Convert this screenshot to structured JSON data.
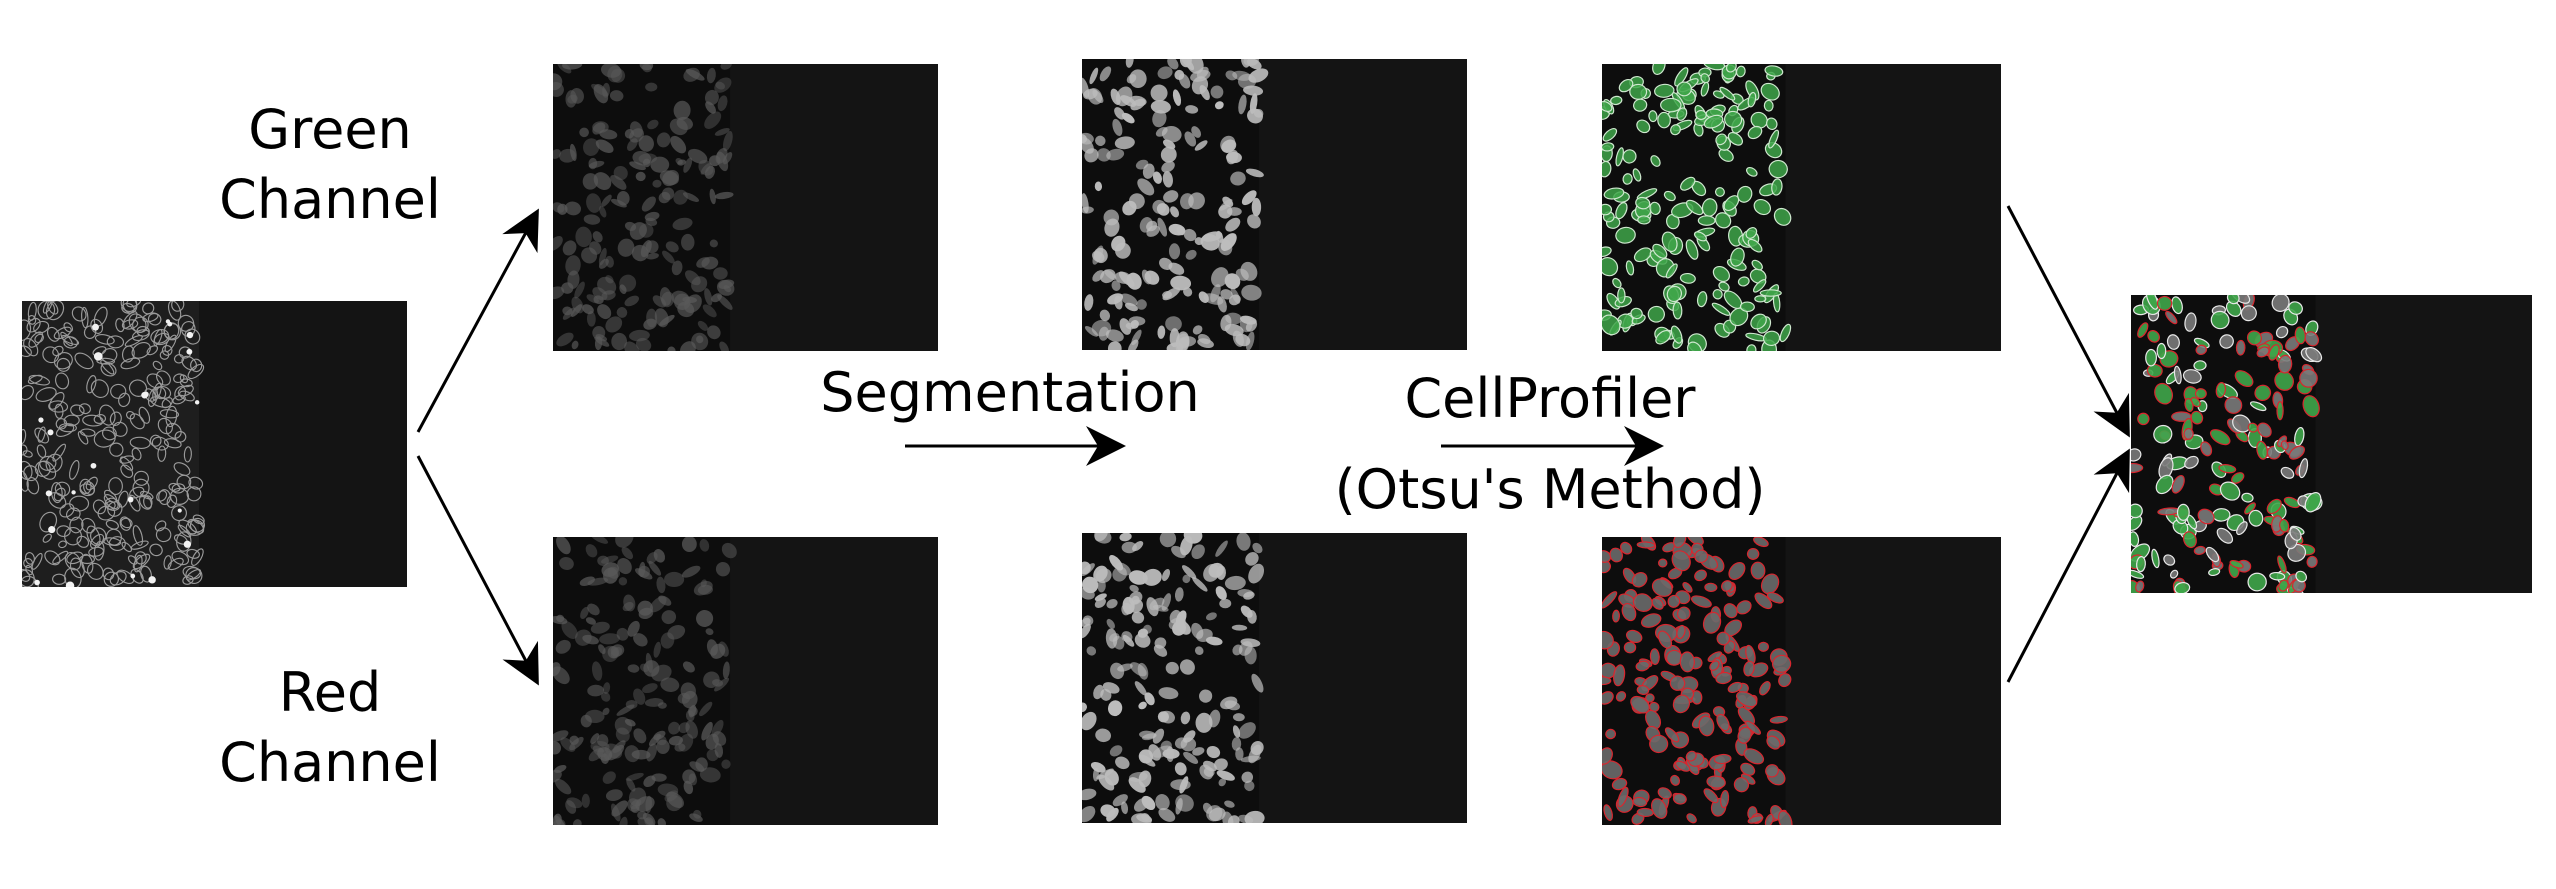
{
  "labels": {
    "green_line1": "Green",
    "green_line2": "Channel",
    "red_line1": "Red",
    "red_line2": "Channel",
    "segmentation": "Segmentation",
    "cellprofiler": "CellProfiler",
    "otsu": "(Otsu's Method)"
  },
  "colors": {
    "background": "#ffffff",
    "text": "#000000",
    "panel_dark": "#0d0d0d",
    "cell_gray": "#bdbdbd",
    "cell_green": "#3fa64a",
    "cell_red": "#d8262e"
  },
  "panels": [
    {
      "id": "input",
      "style": "phase-contrast"
    },
    {
      "id": "green-raw",
      "style": "dim-gray"
    },
    {
      "id": "green-seg",
      "style": "bright-gray"
    },
    {
      "id": "green-otsu",
      "style": "green-overlay"
    },
    {
      "id": "red-raw",
      "style": "dim-gray"
    },
    {
      "id": "red-seg",
      "style": "bright-gray"
    },
    {
      "id": "red-otsu",
      "style": "red-overlay"
    },
    {
      "id": "merged",
      "style": "merged-overlay"
    }
  ]
}
